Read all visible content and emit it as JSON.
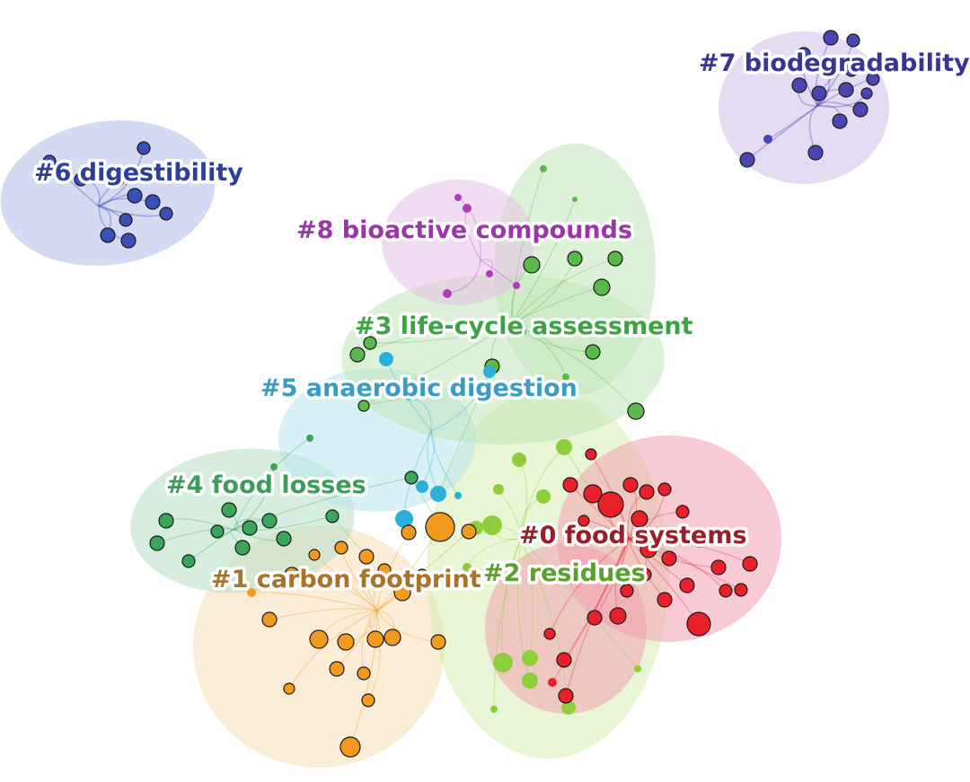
{
  "clusters": [
    {
      "id": "c0",
      "label": "#0 food systems",
      "color": "#e8202a",
      "hull": "#f2a0b0"
    },
    {
      "id": "c1",
      "label": "#1 carbon footprint",
      "color": "#f29a1e",
      "hull": "#f8dcb6"
    },
    {
      "id": "c2",
      "label": "#2 residues",
      "color": "#8fce3a",
      "hull": "#d6efb2"
    },
    {
      "id": "c3",
      "label": "#3 life-cycle assessment",
      "color": "#5ab94a",
      "hull": "#bfe6b8"
    },
    {
      "id": "c4",
      "label": "#4 food losses",
      "color": "#3aa65a",
      "hull": "#b6e0c4"
    },
    {
      "id": "c5",
      "label": "#5 anaerobic digestion",
      "color": "#2bb0d8",
      "hull": "#b8e4ee"
    },
    {
      "id": "c6",
      "label": "#6 digestibility",
      "color": "#3a4fb8",
      "hull": "#aebbe8"
    },
    {
      "id": "c7",
      "label": "#7 biodegradability",
      "color": "#4a45b0",
      "hull": "#cfc0ea"
    },
    {
      "id": "c8",
      "label": "#8 bioactive compounds",
      "color": "#b03cb8",
      "hull": "#e8c0ea"
    }
  ],
  "label_colors": {
    "c0": "#9a1d2a",
    "c1": "#a8742a",
    "c2": "#5aa02a",
    "c3": "#3aa440",
    "c4": "#3a9e5a",
    "c5": "#3a9cc4",
    "c6": "#2c3f9a",
    "c7": "#3a3494",
    "c8": "#9a36a8"
  }
}
